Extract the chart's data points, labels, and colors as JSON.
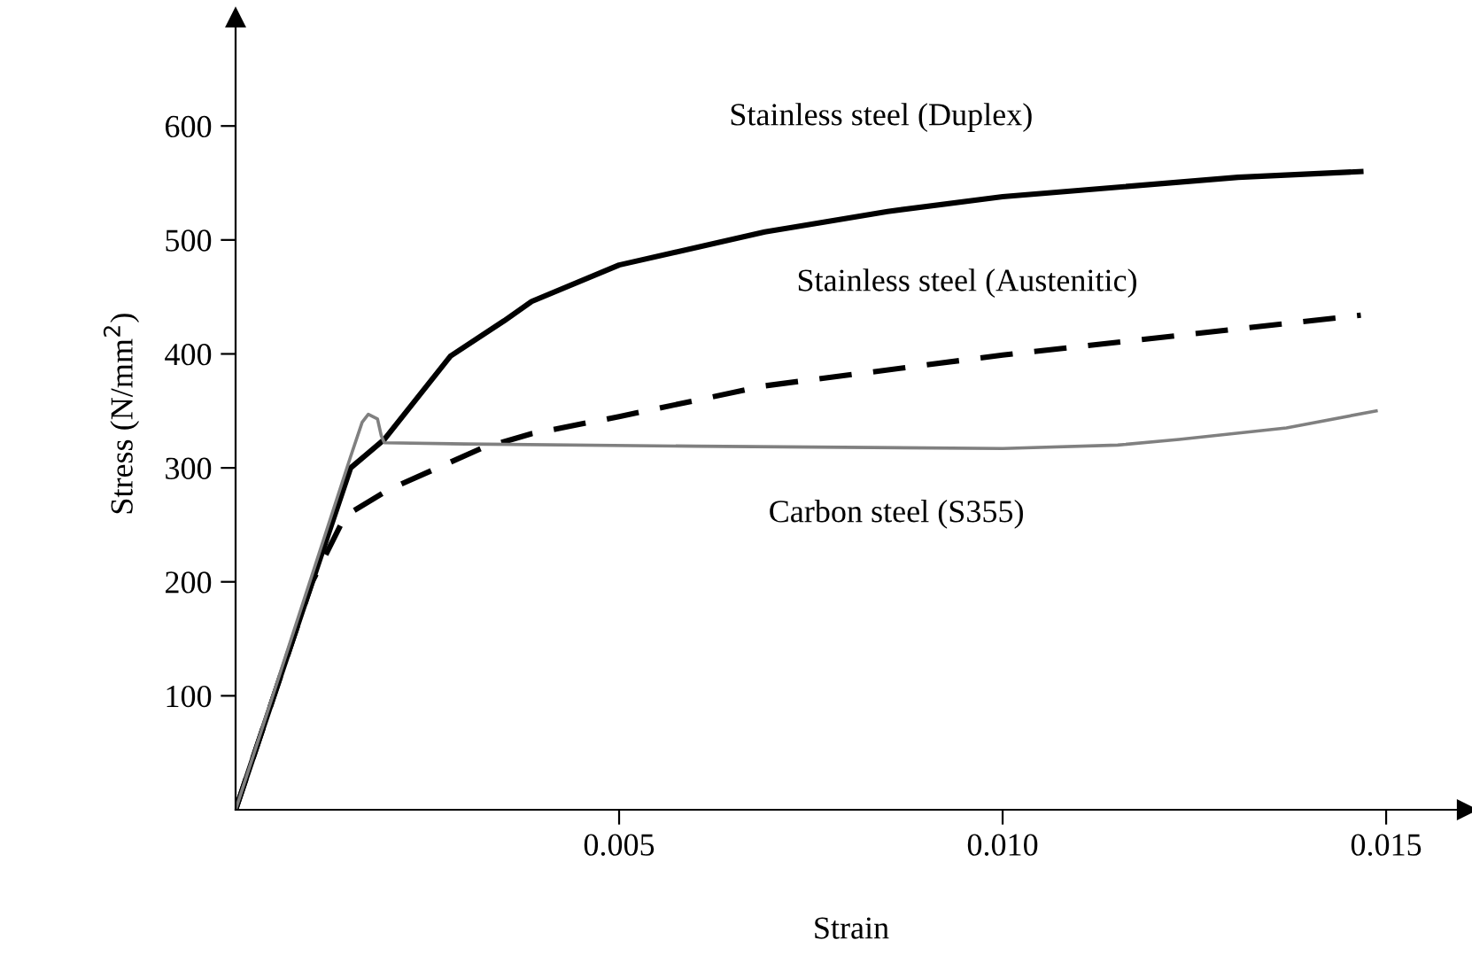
{
  "chart_data": {
    "type": "line",
    "xlabel": "Strain",
    "ylabel": "Stress (N/mm$^{2}$)",
    "xlim": [
      0,
      0.01605
    ],
    "ylim": [
      0,
      695
    ],
    "xticks": [
      {
        "value": 0.005,
        "label": "0.005"
      },
      {
        "value": 0.01,
        "label": "0.010"
      },
      {
        "value": 0.015,
        "label": "0.015"
      }
    ],
    "yticks": [
      100,
      200,
      300,
      400,
      500,
      600
    ],
    "grid": false,
    "legend": false,
    "series": [
      {
        "name": "Stainless steel (Duplex)",
        "color": "#000000",
        "line_style": "solid",
        "x": [
          0,
          0.0015,
          0.00194,
          0.0028,
          0.0035,
          0.00386,
          0.005,
          0.0069,
          0.0085,
          0.01,
          0.01307,
          0.01467
        ],
        "values": [
          0,
          300,
          325,
          398,
          429,
          446,
          478,
          507,
          525,
          538,
          555,
          560
        ]
      },
      {
        "name": "Stainless steel (Austenitic)",
        "color": "#000000",
        "line_style": "dashed",
        "x": [
          0,
          0.001,
          0.00143,
          0.002,
          0.0032,
          0.00386,
          0.005,
          0.0069,
          0.01,
          0.01467
        ],
        "values": [
          0,
          200,
          258,
          281,
          317,
          330,
          345,
          372,
          399,
          434
        ]
      },
      {
        "name": "Carbon steel (S355)",
        "color": "#808080",
        "line_style": "solid",
        "x": [
          0,
          0.0015,
          0.00165,
          0.00173,
          0.00185,
          0.0019,
          0.00194,
          0.003,
          0.006,
          0.01,
          0.0115,
          0.0123,
          0.0137,
          0.01487
        ],
        "values": [
          0,
          310,
          340,
          347,
          343,
          328,
          322,
          321,
          319,
          317,
          320,
          325,
          335,
          350
        ]
      }
    ]
  }
}
